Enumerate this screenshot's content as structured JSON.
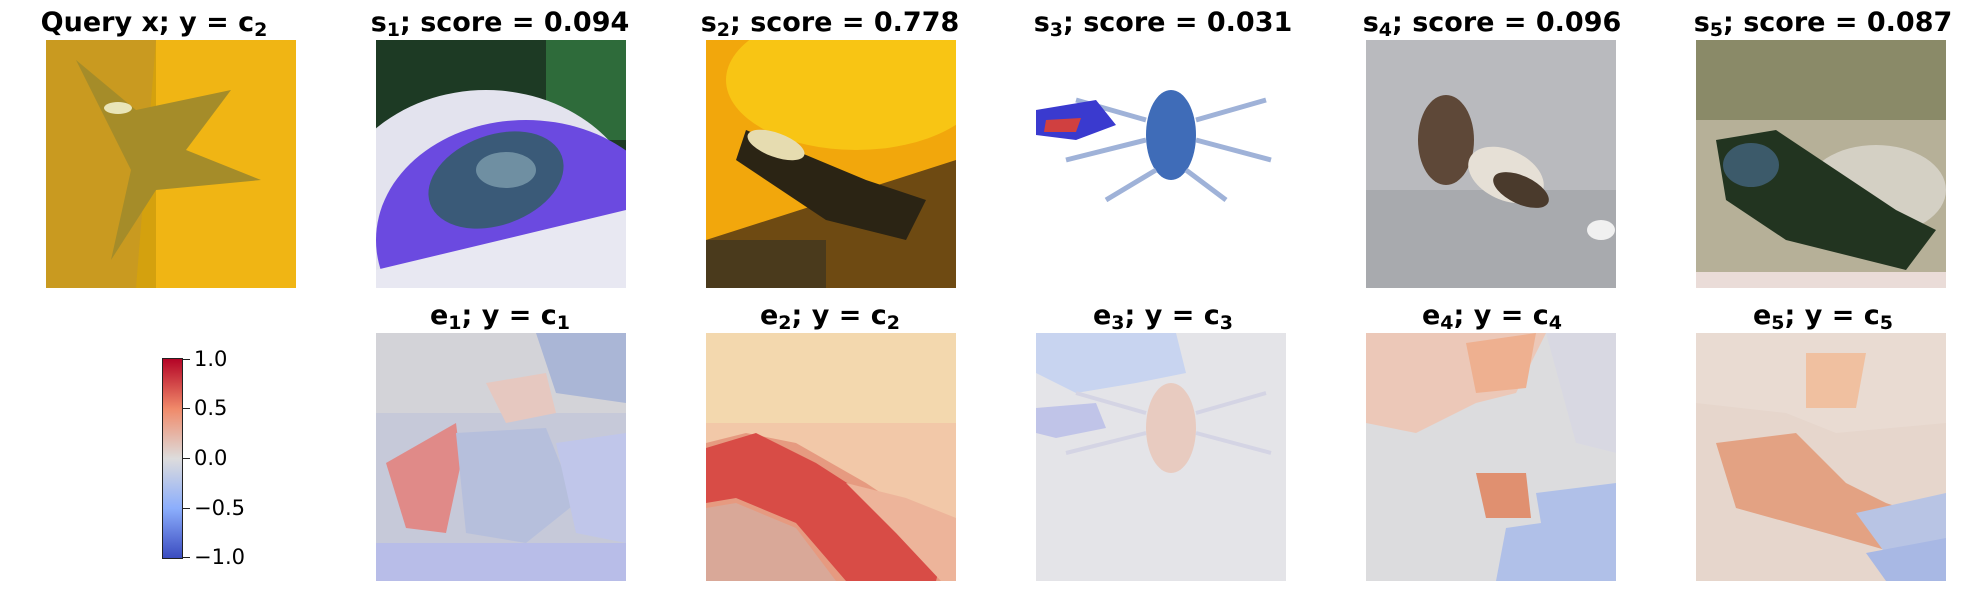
{
  "query": {
    "label": "Query x; y = c",
    "sub": "2"
  },
  "samples": [
    {
      "sym": "s",
      "idx": "1",
      "score_text": "; score = 0.094"
    },
    {
      "sym": "s",
      "idx": "2",
      "score_text": "; score = 0.778"
    },
    {
      "sym": "s",
      "idx": "3",
      "score_text": "; score = 0.031"
    },
    {
      "sym": "s",
      "idx": "4",
      "score_text": "; score = 0.096"
    },
    {
      "sym": "s",
      "idx": "5",
      "score_text": "; score = 0.087"
    }
  ],
  "explanations": [
    {
      "sym": "e",
      "idx": "1",
      "mid": "; y = c",
      "cls": "1"
    },
    {
      "sym": "e",
      "idx": "2",
      "mid": "; y = c",
      "cls": "2"
    },
    {
      "sym": "e",
      "idx": "3",
      "mid": "; y = c",
      "cls": "3"
    },
    {
      "sym": "e",
      "idx": "4",
      "mid": "; y = c",
      "cls": "4"
    },
    {
      "sym": "e",
      "idx": "5",
      "mid": "; y = c",
      "cls": "5"
    }
  ],
  "colorbar": {
    "colormap": "coolwarm",
    "range": [
      -1.0,
      1.0
    ],
    "ticks": [
      "1.0",
      "0.5",
      "0.0",
      "−0.5",
      "−1.0"
    ],
    "colors": {
      "high": "#b40426",
      "mid": "#dddcdc",
      "low": "#3b4cc0"
    }
  }
}
